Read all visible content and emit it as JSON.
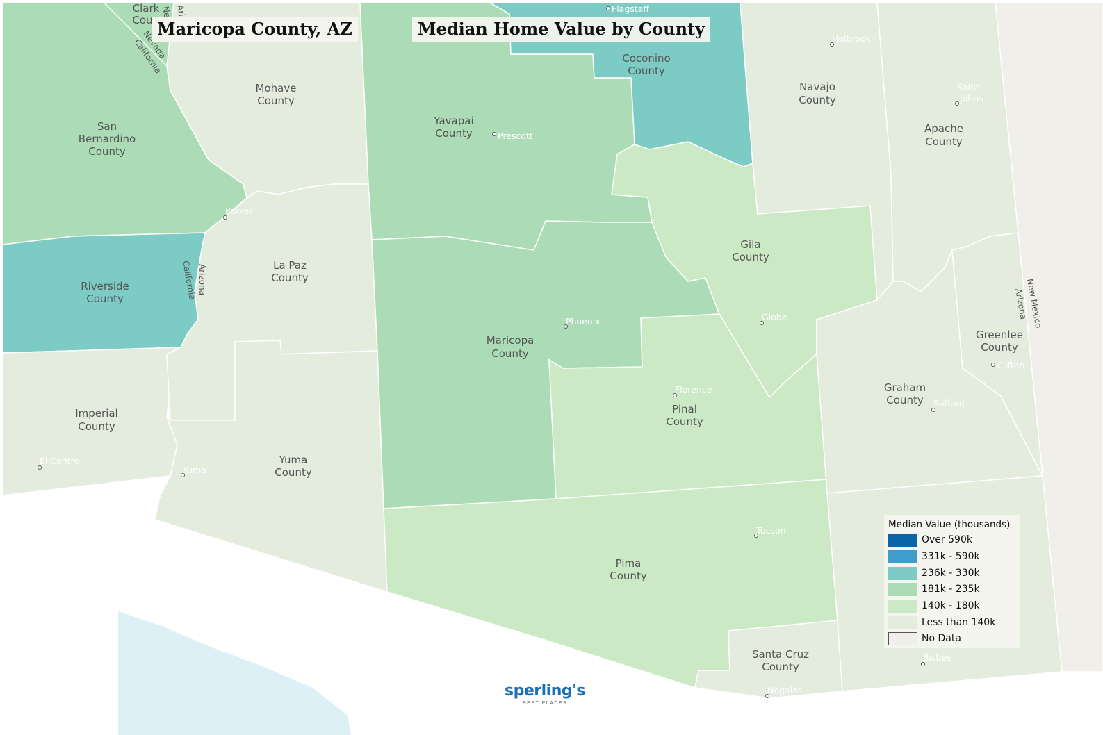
{
  "titles": {
    "location": "Maricopa County, AZ",
    "map_title": "Median Home Value by County"
  },
  "colors": {
    "over_590k": "#0b63a8",
    "c331_590k": "#3f9ccc",
    "c236_330k": "#7ccbc5",
    "c181_235k": "#abdcb5",
    "c140_180k": "#cce9c6",
    "less_140k": "#e3ecdd",
    "no_data": "#f0efe9",
    "water": "#cfe9f2"
  },
  "counties": {
    "maricopa": [
      "Maricopa",
      "County"
    ],
    "yavapai": [
      "Yavapai",
      "County"
    ],
    "coconino": [
      "Coconino",
      "County"
    ],
    "navajo": [
      "Navajo",
      "County"
    ],
    "apache": [
      "Apache",
      "County"
    ],
    "mohave": [
      "Mohave",
      "County"
    ],
    "san_bernardino": [
      "San",
      "Bernardino",
      "County"
    ],
    "la_paz": [
      "La Paz",
      "County"
    ],
    "riverside": [
      "Riverside",
      "County"
    ],
    "gila": [
      "Gila",
      "County"
    ],
    "greenlee": [
      "Greenlee",
      "County"
    ],
    "graham": [
      "Graham",
      "County"
    ],
    "pinal": [
      "Pinal",
      "County"
    ],
    "imperial": [
      "Imperial",
      "County"
    ],
    "yuma": [
      "Yuma",
      "County"
    ],
    "pima": [
      "Pima",
      "County"
    ],
    "santa_cruz": [
      "Santa Cruz",
      "County"
    ],
    "clark": [
      "Clark",
      "Cou"
    ]
  },
  "cities": {
    "flagstaff": "Flagstaff",
    "holbrook": "Holbrook",
    "saint_johns": [
      "Saint",
      "Johns"
    ],
    "prescott": "Prescott",
    "parker": "Parker",
    "phoenix": "Phoenix",
    "globe": "Globe",
    "clifton": "Clifton",
    "florence": "Florence",
    "safford": "Safford",
    "el_centro": "El Centro",
    "yuma": "Yuma",
    "tucson": "Tucson",
    "bisbee": "Bisbee",
    "nogales": "Nogales"
  },
  "borders": {
    "nevada": "Nevada",
    "california": "California",
    "arizona": "Arizona",
    "new_mexico": "New Mexico",
    "ne": "Ne",
    "ari": "Ari"
  },
  "legend": {
    "title": "Median Value (thousands)",
    "items": [
      {
        "label": "Over 590k",
        "color": "#0b63a8"
      },
      {
        "label": "331k - 590k",
        "color": "#3f9ccc"
      },
      {
        "label": "236k - 330k",
        "color": "#7ccbc5"
      },
      {
        "label": "181k - 235k",
        "color": "#abdcb5"
      },
      {
        "label": "140k - 180k",
        "color": "#cce9c6"
      },
      {
        "label": "Less than 140k",
        "color": "#e3ecdd"
      },
      {
        "label": "No Data",
        "color": "#f0efe9"
      }
    ]
  },
  "logo": {
    "name": "sperling's",
    "tagline": "BEST PLACES"
  }
}
